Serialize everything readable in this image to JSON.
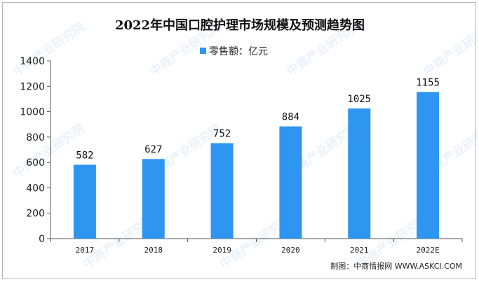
{
  "chart_data": {
    "type": "bar",
    "title": "2022年中国口腔护理市场规模及预测趋势图",
    "legend": "零售额：亿元",
    "legend_position": "top-center",
    "categories": [
      "2017",
      "2018",
      "2019",
      "2020",
      "2021",
      "2022E"
    ],
    "series": [
      {
        "name": "零售额：亿元",
        "values": [
          582,
          627,
          752,
          884,
          1025,
          1155
        ]
      }
    ],
    "data_labels": [
      "582",
      "627",
      "752",
      "884",
      "1025",
      "1155"
    ],
    "ylim": [
      0,
      1400
    ],
    "yticks": [
      "0",
      "200",
      "400",
      "600",
      "800",
      "1000",
      "1200",
      "1400"
    ],
    "grid": false,
    "bar_color": "#2e96f0",
    "source": "制图：中商情报网 WWW.ASKCI.COM",
    "watermark": "中商产业研究院"
  }
}
